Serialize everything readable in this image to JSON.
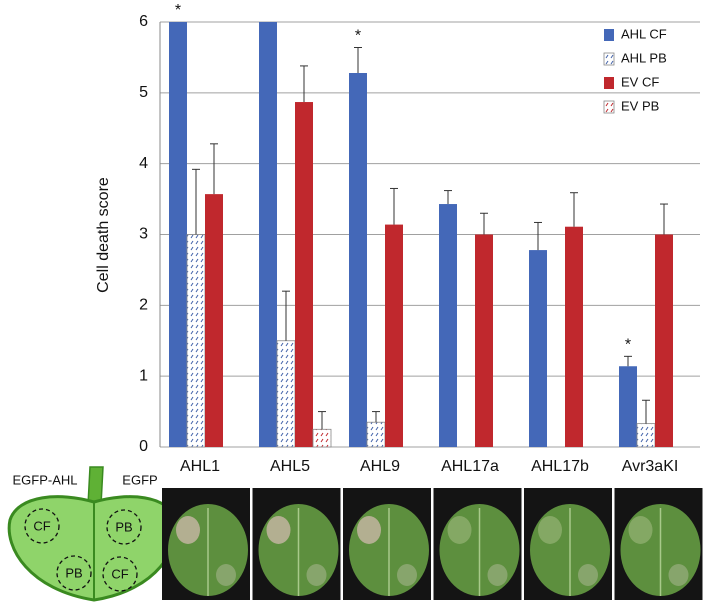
{
  "chart_data": {
    "type": "bar",
    "y_label": "Cell death score",
    "categories": [
      "AHL1",
      "AHL5",
      "AHL9",
      "AHL17a",
      "AHL17b",
      "Avr3aKI"
    ],
    "series": [
      {
        "name": "AHL CF",
        "color": "#4468b8",
        "hatch": false,
        "values": [
          6,
          6,
          5.28,
          3.43,
          2.78,
          1.14
        ],
        "errors": [
          null,
          null,
          0.36,
          0.19,
          0.39,
          0.14
        ]
      },
      {
        "name": "AHL PB",
        "color": "#3f5fa8",
        "hatch": true,
        "values": [
          3.0,
          1.5,
          0.35,
          null,
          null,
          0.33
        ],
        "errors": [
          0.92,
          0.7,
          0.15,
          null,
          null,
          0.33
        ]
      },
      {
        "name": "EV CF",
        "color": "#c0282d",
        "hatch": false,
        "values": [
          3.57,
          4.87,
          3.14,
          3.0,
          3.11,
          3.0
        ],
        "errors": [
          0.71,
          0.51,
          0.51,
          0.3,
          0.48,
          0.43
        ]
      },
      {
        "name": "EV PB",
        "color": "#c0282d",
        "hatch": true,
        "values": [
          null,
          0.25,
          null,
          null,
          null,
          null
        ],
        "errors": [
          null,
          0.25,
          null,
          null,
          null,
          null
        ]
      }
    ],
    "asterisks": [
      "*",
      null,
      "*",
      null,
      null,
      "*"
    ],
    "ylim": [
      0,
      6
    ],
    "yticks": [
      0,
      1,
      2,
      3,
      4,
      5,
      6
    ],
    "grid": true,
    "legend": "top-right"
  },
  "diagram": {
    "left_label": "EGFP-AHL",
    "right_label": "EGFP",
    "spots": [
      "CF",
      "PB",
      "PB",
      "CF"
    ]
  }
}
